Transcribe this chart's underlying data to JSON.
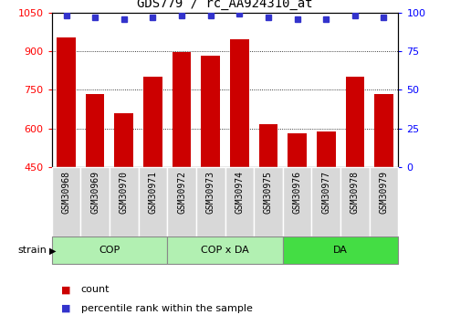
{
  "title": "GDS779 / rc_AA924310_at",
  "samples": [
    "GSM30968",
    "GSM30969",
    "GSM30970",
    "GSM30971",
    "GSM30972",
    "GSM30973",
    "GSM30974",
    "GSM30975",
    "GSM30976",
    "GSM30977",
    "GSM30978",
    "GSM30979"
  ],
  "bar_values": [
    955,
    735,
    660,
    800,
    895,
    882,
    948,
    615,
    580,
    588,
    800,
    732
  ],
  "percentile_values": [
    98,
    97,
    96,
    97,
    98,
    98,
    99,
    97,
    96,
    96,
    98,
    97
  ],
  "ylim_left": [
    450,
    1050
  ],
  "ylim_right": [
    0,
    100
  ],
  "yticks_left": [
    450,
    600,
    750,
    900,
    1050
  ],
  "yticks_right": [
    0,
    25,
    50,
    75,
    100
  ],
  "bar_color": "#cc0000",
  "dot_color": "#3333cc",
  "group_starts": [
    0,
    4,
    8
  ],
  "group_ends": [
    3,
    7,
    11
  ],
  "group_labels": [
    "COP",
    "COP x DA",
    "DA"
  ],
  "group_colors_light": "#b2f0b2",
  "group_color_dark": "#44dd44",
  "group_dark_index": 2,
  "xlabel": "strain",
  "legend_bar_label": "count",
  "legend_dot_label": "percentile rank within the sample",
  "xtick_bg": "#d8d8d8",
  "plot_bg": "#ffffff"
}
